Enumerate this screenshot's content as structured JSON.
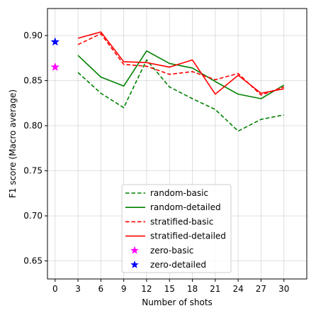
{
  "chart_data": {
    "type": "line",
    "xlabel": "Number of shots",
    "ylabel": "F1 score (Macro average)",
    "xlim": [
      -1,
      33
    ],
    "ylim": [
      0.63,
      0.93
    ],
    "xticks": [
      0,
      3,
      6,
      9,
      12,
      15,
      18,
      21,
      24,
      27,
      30
    ],
    "yticks": [
      0.65,
      0.7,
      0.75,
      0.8,
      0.85,
      0.9
    ],
    "ytick_labels": [
      "0.65",
      "0.70",
      "0.75",
      "0.80",
      "0.85",
      "0.90"
    ],
    "grid": true,
    "legend_position": "lower-center",
    "series": [
      {
        "name": "random-basic",
        "style": "dashed",
        "color": "#008000",
        "x": [
          3,
          6,
          9,
          12,
          15,
          18,
          21,
          24,
          27,
          30
        ],
        "y": [
          0.859,
          0.836,
          0.82,
          0.873,
          0.843,
          0.83,
          0.818,
          0.794,
          0.807,
          0.812
        ]
      },
      {
        "name": "random-detailed",
        "style": "solid",
        "color": "#008000",
        "x": [
          3,
          6,
          9,
          12,
          15,
          18,
          21,
          24,
          27,
          30
        ],
        "y": [
          0.878,
          0.854,
          0.844,
          0.883,
          0.869,
          0.864,
          0.849,
          0.835,
          0.83,
          0.845
        ]
      },
      {
        "name": "stratified-basic",
        "style": "dashed",
        "color": "#ff0000",
        "x": [
          3,
          6,
          9,
          12,
          15,
          18,
          21,
          24,
          27,
          30
        ],
        "y": [
          0.89,
          0.902,
          0.868,
          0.866,
          0.857,
          0.86,
          0.851,
          0.858,
          0.834,
          0.843
        ]
      },
      {
        "name": "stratified-detailed",
        "style": "solid",
        "color": "#ff0000",
        "x": [
          3,
          6,
          9,
          12,
          15,
          18,
          21,
          24,
          27,
          30
        ],
        "y": [
          0.897,
          0.904,
          0.871,
          0.87,
          0.865,
          0.873,
          0.835,
          0.856,
          0.836,
          0.841
        ]
      },
      {
        "name": "zero-basic",
        "style": "star",
        "color": "#ff00ff",
        "x": [
          0
        ],
        "y": [
          0.865
        ]
      },
      {
        "name": "zero-detailed",
        "style": "star",
        "color": "#0000ff",
        "x": [
          0
        ],
        "y": [
          0.893
        ]
      }
    ]
  }
}
